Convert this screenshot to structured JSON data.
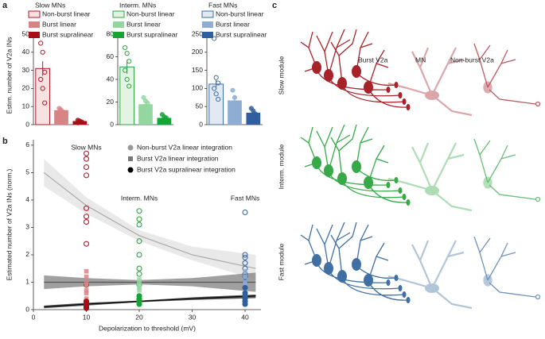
{
  "chart_data": [
    {
      "type": "bar",
      "panel": "a",
      "title": "Slow MNs",
      "title_color": "#b2182b",
      "ylabel": "Estim. number of V2a INs",
      "categories": [
        "Non-burst linear",
        "Burst linear",
        "Burst supralinear"
      ],
      "values": [
        31,
        8,
        2
      ],
      "errors": [
        4,
        1.5,
        0.5
      ],
      "colors": [
        "#f7e2e2",
        "#d98484",
        "#a50f15"
      ],
      "edge_color": "#b2182b",
      "markers": [
        "open",
        "filled",
        "filled"
      ],
      "points": [
        [
          45,
          40,
          29,
          25,
          20,
          12
        ],
        [
          9,
          8,
          7,
          6,
          5,
          4
        ],
        [
          2.5,
          2,
          1.5,
          1
        ]
      ],
      "ylim": [
        0,
        50
      ],
      "yticks": [
        0,
        10,
        20,
        30,
        40,
        50
      ]
    },
    {
      "type": "bar",
      "title": "Interm. MNs",
      "title_color": "#2ca33e",
      "categories": [
        "Non-burst linear",
        "Burst linear",
        "Burst supralinear"
      ],
      "values": [
        51,
        18,
        6
      ],
      "errors": [
        6,
        2,
        1
      ],
      "colors": [
        "#e3f4e4",
        "#93d6a0",
        "#16a535"
      ],
      "edge_color": "#2ca33e",
      "markers": [
        "open",
        "filled",
        "filled"
      ],
      "points": [
        [
          68,
          63,
          56,
          48,
          40,
          34
        ],
        [
          24,
          21,
          19,
          16,
          14
        ],
        [
          9,
          7,
          6,
          4,
          3
        ]
      ],
      "ylim": [
        0,
        80
      ],
      "yticks": [
        0,
        20,
        40,
        60,
        80
      ]
    },
    {
      "type": "bar",
      "title": "Fast MNs",
      "title_color": "#3d6ea5",
      "categories": [
        "Non-burst linear",
        "Burst linear",
        "Burst supralinear"
      ],
      "values": [
        112,
        67,
        33
      ],
      "errors": [
        12,
        15,
        5
      ],
      "colors": [
        "#e2e9f3",
        "#8fadd2",
        "#2f5f9e"
      ],
      "edge_color": "#3d6ea5",
      "markers": [
        "open",
        "filled",
        "filled"
      ],
      "points": [
        [
          238,
          130,
          115,
          100,
          85,
          70
        ],
        [
          95,
          75,
          55,
          40,
          25
        ],
        [
          45,
          38,
          30,
          25
        ]
      ],
      "ylim": [
        0,
        250
      ],
      "yticks": [
        0,
        50,
        100,
        150,
        200,
        250
      ]
    },
    {
      "type": "scatter",
      "panel": "b",
      "xlabel": "Depolarization to threshold (mV)",
      "ylabel": "Estimated number of V2a INs (norm.)",
      "xlim": [
        0,
        43
      ],
      "xticks": [
        0,
        10,
        20,
        30,
        40
      ],
      "ylim": [
        0,
        6.2
      ],
      "yticks": [
        0,
        1,
        2,
        3,
        4,
        5,
        6
      ],
      "annotations": [
        {
          "text": "Slow MNs",
          "color": "#b2182b"
        },
        {
          "text": "Interm. MNs",
          "color": "#2ca33e"
        },
        {
          "text": "Fast MNs",
          "color": "#3d6ea5"
        }
      ],
      "legend": [
        {
          "name": "Non-burst V2a linear integration",
          "color": "#999999",
          "marker": "circle"
        },
        {
          "name": "Burst V2a linear integration",
          "color": "#777777",
          "marker": "square"
        },
        {
          "name": "Burst V2a supralinear integration",
          "color": "#000000",
          "marker": "circle"
        }
      ],
      "fits": [
        {
          "x": [
            2,
            10,
            20,
            30,
            42
          ],
          "y": [
            5.0,
            3.8,
            2.7,
            2.0,
            1.5
          ],
          "lower": [
            4.5,
            3.5,
            2.5,
            1.8,
            1.1
          ],
          "upper": [
            5.5,
            4.1,
            2.9,
            2.3,
            2.0
          ],
          "color": "#aaaaaa",
          "band": "#e4e4e4"
        },
        {
          "x": [
            2,
            10,
            20,
            30,
            42
          ],
          "y": [
            1.0,
            1.0,
            1.0,
            1.0,
            1.0
          ],
          "lower": [
            0.75,
            0.85,
            0.92,
            0.85,
            0.65
          ],
          "upper": [
            1.25,
            1.15,
            1.08,
            1.15,
            1.35
          ],
          "color": "#555555",
          "band": "#888888"
        },
        {
          "x": [
            2,
            10,
            20,
            30,
            42
          ],
          "y": [
            0.1,
            0.2,
            0.3,
            0.4,
            0.5
          ],
          "lower": [
            0.05,
            0.15,
            0.27,
            0.35,
            0.42
          ],
          "upper": [
            0.15,
            0.25,
            0.33,
            0.45,
            0.55
          ],
          "color": "#000000",
          "band": "#333333"
        }
      ],
      "groups": [
        {
          "x": 10,
          "marker": "open",
          "color": "#b2182b",
          "y": [
            5.7,
            5.5,
            5.2,
            4.9,
            3.7,
            3.4,
            3.2,
            2.4,
            0.9,
            0.3
          ]
        },
        {
          "x": 10,
          "marker": "square",
          "color": "#d98484",
          "y": [
            1.4,
            1.2,
            1.0,
            0.9,
            0.7,
            0.6,
            0.4
          ]
        },
        {
          "x": 10,
          "marker": "filled",
          "color": "#a50f15",
          "y": [
            0.3,
            0.2,
            0.15,
            0.1,
            0.05
          ]
        },
        {
          "x": 20,
          "marker": "open",
          "color": "#2ca33e",
          "y": [
            3.6,
            3.3,
            3.1,
            2.5,
            2.0,
            1.5,
            1.3,
            0.9
          ]
        },
        {
          "x": 20,
          "marker": "square",
          "color": "#93d6a0",
          "y": [
            1.1,
            1.0,
            0.9,
            0.8,
            0.7,
            0.5,
            0.4
          ]
        },
        {
          "x": 20,
          "marker": "filled",
          "color": "#16a535",
          "y": [
            0.5,
            0.4,
            0.35,
            0.3,
            0.2
          ]
        },
        {
          "x": 40,
          "marker": "open",
          "color": "#3d6ea5",
          "y": [
            3.55,
            2.0,
            1.9,
            1.7,
            1.5,
            1.3,
            1.2,
            1.0
          ]
        },
        {
          "x": 40,
          "marker": "square",
          "color": "#8fadd2",
          "y": [
            1.4,
            1.2,
            1.0,
            0.9,
            0.8,
            0.6
          ]
        },
        {
          "x": 40,
          "marker": "filled",
          "color": "#2f5f9e",
          "y": [
            0.8,
            0.6,
            0.5,
            0.4,
            0.3,
            0.2
          ]
        }
      ]
    }
  ],
  "diagram": {
    "panel": "c",
    "cell_labels": [
      "Burst V2a",
      "MN",
      "Non-burst V2a"
    ],
    "modules": [
      {
        "label": "Slow module",
        "color": "#a8222a"
      },
      {
        "label": "Interm. module",
        "color": "#36a948"
      },
      {
        "label": "Fast module",
        "color": "#3f6fa3"
      }
    ]
  }
}
